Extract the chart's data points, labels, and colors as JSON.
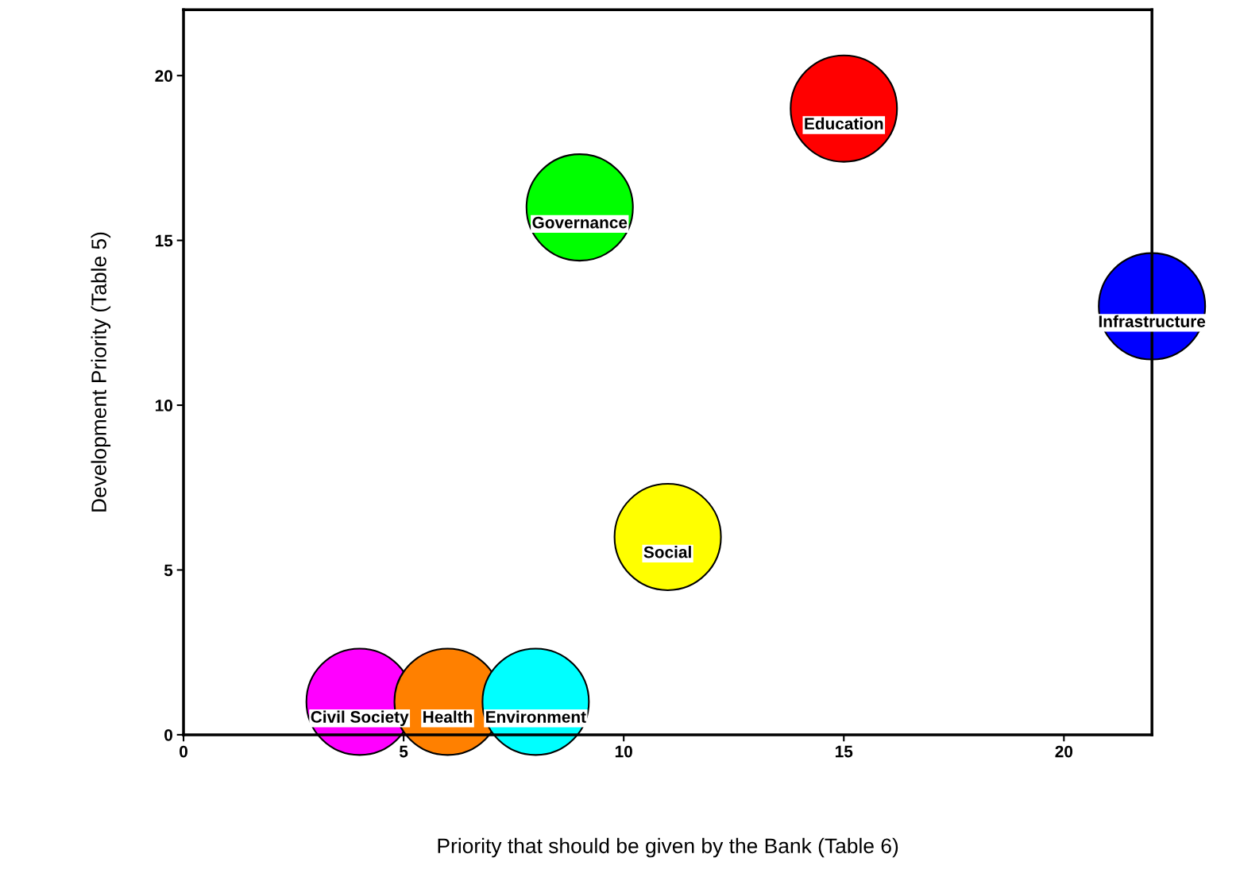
{
  "chart_data": {
    "type": "bubble",
    "xlabel": "Priority that should be given by the Bank (Table 6)",
    "ylabel": "Development Priority (Table 5)",
    "xlim": [
      0,
      22
    ],
    "ylim": [
      0,
      22
    ],
    "xticks": [
      0,
      5,
      10,
      15,
      20
    ],
    "yticks": [
      0,
      5,
      10,
      15,
      20
    ],
    "grid": false,
    "legend": false,
    "series": [
      {
        "name": "Education",
        "color": "#ff0000",
        "x": [
          15
        ],
        "values": [
          19
        ],
        "sizes": [
          1
        ]
      },
      {
        "name": "Governance",
        "color": "#00ff00",
        "x": [
          9
        ],
        "values": [
          16
        ],
        "sizes": [
          1
        ]
      },
      {
        "name": "Infrastructure",
        "color": "#0000ff",
        "x": [
          22
        ],
        "values": [
          13
        ],
        "sizes": [
          1
        ]
      },
      {
        "name": "Social",
        "color": "#ffff00",
        "x": [
          11
        ],
        "values": [
          6
        ],
        "sizes": [
          1
        ]
      },
      {
        "name": "Civil Society",
        "color": "#ff00ff",
        "x": [
          4
        ],
        "values": [
          1
        ],
        "sizes": [
          1
        ]
      },
      {
        "name": "Health",
        "color": "#ff8000",
        "x": [
          6
        ],
        "values": [
          1
        ],
        "sizes": [
          1
        ]
      },
      {
        "name": "Environment",
        "color": "#00ffff",
        "x": [
          8
        ],
        "values": [
          1
        ],
        "sizes": [
          1
        ]
      }
    ]
  }
}
